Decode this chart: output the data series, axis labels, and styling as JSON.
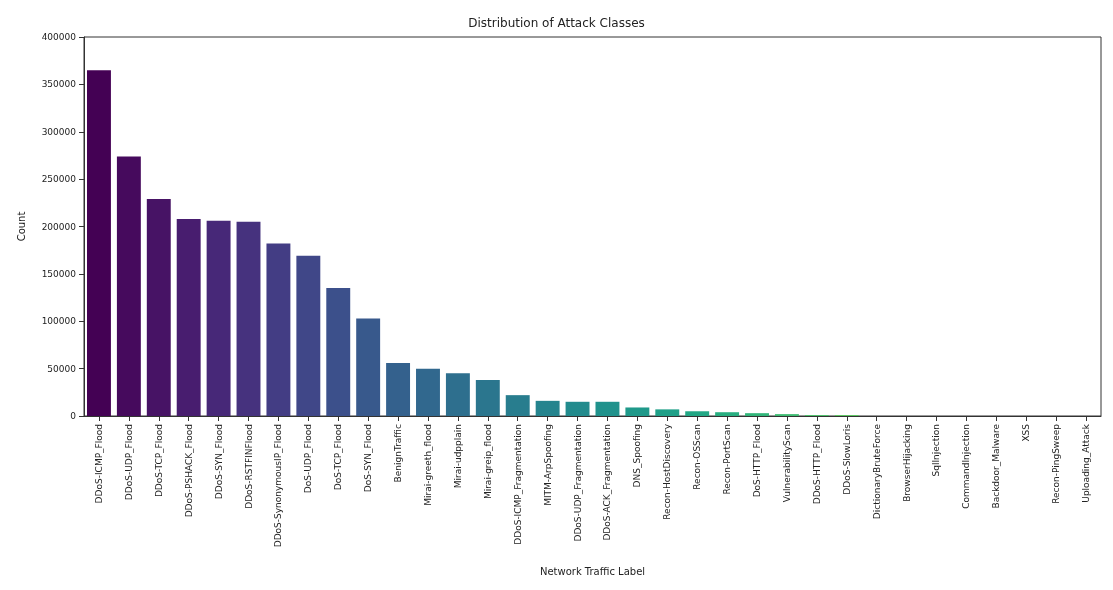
{
  "chart_data": {
    "type": "bar",
    "title": "Distribution of Attack Classes",
    "xlabel": "Network Traffic Label",
    "ylabel": "Count",
    "categories": [
      "DDoS-ICMP_Flood",
      "DDoS-UDP_Flood",
      "DDoS-TCP_Flood",
      "DDoS-PSHACK_Flood",
      "DDoS-SYN_Flood",
      "DDoS-RSTFINFlood",
      "DDoS-SynonymousIP_Flood",
      "DoS-UDP_Flood",
      "DoS-TCP_Flood",
      "DoS-SYN_Flood",
      "BenignTraffic",
      "Mirai-greeth_flood",
      "Mirai-udpplain",
      "Mirai-greip_flood",
      "DDoS-ICMP_Fragmentation",
      "MITM-ArpSpoofing",
      "DDoS-UDP_Fragmentation",
      "DDoS-ACK_Fragmentation",
      "DNS_Spoofing",
      "Recon-HostDiscovery",
      "Recon-OSScan",
      "Recon-PortScan",
      "DoS-HTTP_Flood",
      "VulnerabilityScan",
      "DDoS-HTTP_Flood",
      "DDoS-SlowLoris",
      "DictionaryBruteForce",
      "BrowserHijacking",
      "SqlInjection",
      "CommandInjection",
      "Backdoor_Malware",
      "XSS",
      "Recon-PingSweep",
      "Uploading_Attack"
    ],
    "values": [
      365000,
      274000,
      229000,
      208000,
      206000,
      205000,
      182000,
      169000,
      135000,
      103000,
      56000,
      50000,
      45000,
      38000,
      22000,
      16000,
      15000,
      15000,
      9000,
      7000,
      5000,
      4000,
      3000,
      2000,
      1000,
      1000,
      0,
      0,
      0,
      0,
      0,
      0,
      0,
      0
    ],
    "colors": [
      "#440154",
      "#460a5d",
      "#471365",
      "#481d6f",
      "#472878",
      "#46327e",
      "#433d84",
      "#404788",
      "#3c508b",
      "#38598c",
      "#34618d",
      "#31688e",
      "#2e6f8e",
      "#2b768e",
      "#287d8e",
      "#25848e",
      "#228b8d",
      "#20928c",
      "#1f998a",
      "#1fa088",
      "#22a785",
      "#28ae80",
      "#32b57a",
      "#3fbc73",
      "#4ec36b",
      "#5ec962",
      "#70cf57",
      "#84d44b",
      "#98d83e",
      "#addc30",
      "#c2df23",
      "#d5e21a",
      "#e9e51a",
      "#fde725"
    ],
    "ylim": [
      0,
      400000
    ],
    "yticks": [
      0,
      50000,
      100000,
      150000,
      200000,
      250000,
      300000,
      350000,
      400000
    ],
    "grid": false
  }
}
